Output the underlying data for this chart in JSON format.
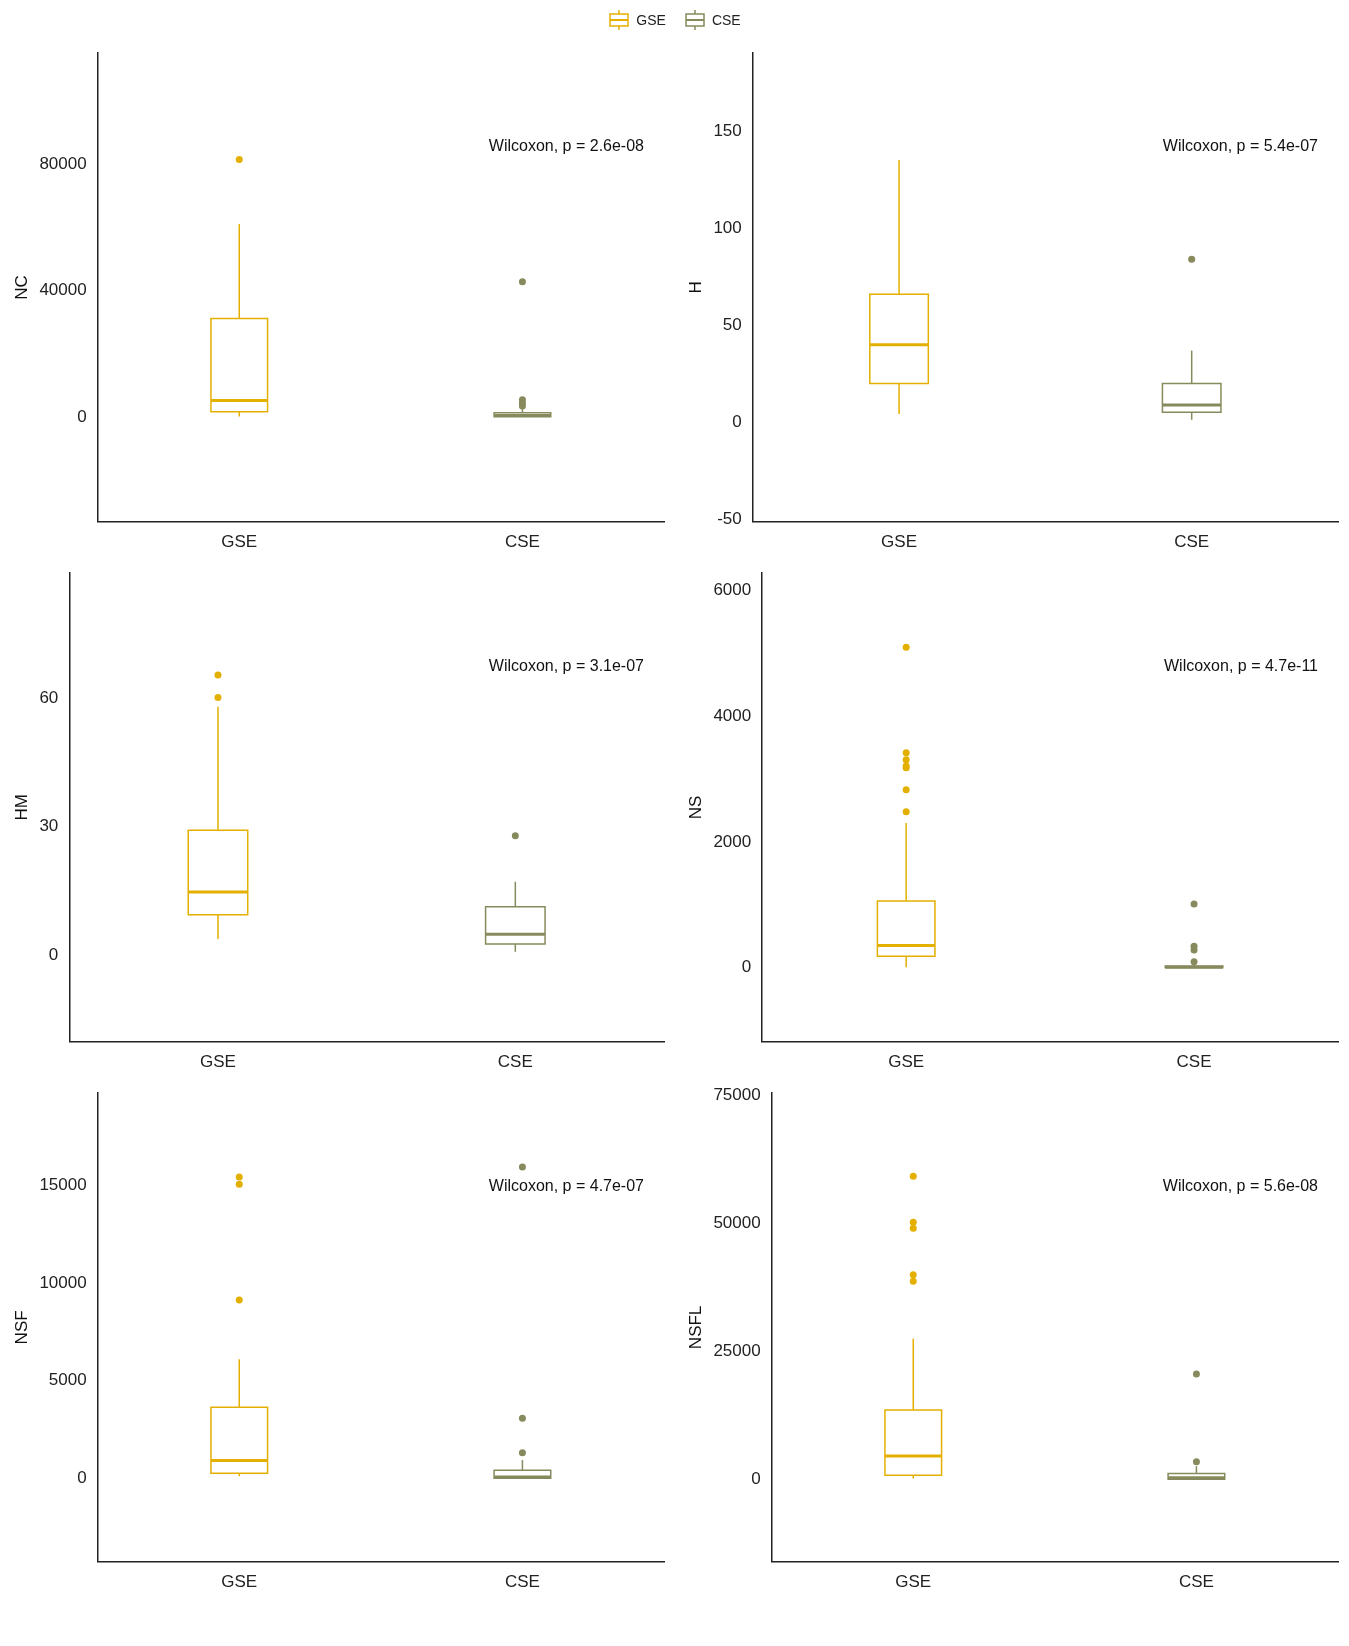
{
  "chart_data": [
    {
      "type": "box",
      "ylabel": "NC",
      "categories": [
        "GSE",
        "CSE"
      ],
      "ylim": [
        -33000,
        115000
      ],
      "yticks": [
        0,
        40000,
        80000
      ],
      "legend": "top",
      "annotations": [
        "Wilcoxon, p = 2.6e-08"
      ],
      "series": [
        {
          "name": "GSE",
          "color": "#e3b000",
          "boxes": [
            {
              "low": 200,
              "q1": 1700,
              "median": 5300,
              "q3": 31200,
              "high": 61000,
              "outliers": [
                81400
              ]
            },
            null
          ]
        },
        {
          "name": "CSE",
          "color": "#878a5c",
          "boxes": [
            null,
            {
              "low": 0,
              "q1": 100,
              "median": 500,
              "q3": 1400,
              "high": 2800,
              "outliers": [
                3500,
                4500,
                5500,
                42800
              ]
            }
          ]
        }
      ]
    },
    {
      "type": "box",
      "ylabel": "H",
      "categories": [
        "GSE",
        "CSE"
      ],
      "ylim": [
        -51,
        190
      ],
      "yticks": [
        -50,
        0,
        50,
        100,
        150
      ],
      "annotations": [
        "Wilcoxon, p = 5.4e-07"
      ],
      "series": [
        {
          "color": "#e3b000",
          "boxes": [
            {
              "low": 4.3,
              "q1": 20,
              "median": 40,
              "q3": 66,
              "high": 135
            },
            null
          ]
        },
        {
          "color": "#878a5c",
          "boxes": [
            null,
            {
              "low": 1.4,
              "q1": 5.3,
              "median": 9,
              "q3": 20,
              "high": 37,
              "outliers": [
                84
              ]
            }
          ]
        }
      ]
    },
    {
      "type": "box",
      "ylabel": "HM",
      "categories": [
        "GSE",
        "CSE"
      ],
      "ylim": [
        -20,
        89
      ],
      "yticks": [
        0,
        30,
        60
      ],
      "annotations": [
        "Wilcoxon, p = 3.1e-07"
      ],
      "series": [
        {
          "color": "#e3b000",
          "boxes": [
            {
              "low": 3.9,
              "q1": 9.5,
              "median": 14.8,
              "q3": 29.2,
              "high": 57.9,
              "outliers": [
                60.1,
                65.3
              ]
            },
            null
          ]
        },
        {
          "color": "#878a5c",
          "boxes": [
            null,
            {
              "low": 0.9,
              "q1": 2.7,
              "median": 5,
              "q3": 11.4,
              "high": 17.2,
              "outliers": [
                27.9
              ]
            }
          ]
        }
      ]
    },
    {
      "type": "box",
      "ylabel": "NS",
      "categories": [
        "GSE",
        "CSE"
      ],
      "ylim": [
        -1180,
        6280
      ],
      "yticks": [
        0,
        2000,
        4000,
        6000
      ],
      "annotations": [
        "Wilcoxon, p = 4.7e-11"
      ],
      "series": [
        {
          "color": "#e3b000",
          "boxes": [
            {
              "low": 5,
              "q1": 180,
              "median": 350,
              "q3": 1060,
              "high": 2300,
              "outliers": [
                2480,
                2830,
                3180,
                3210,
                3310,
                3420,
                5100
              ]
            },
            null
          ]
        },
        {
          "color": "#878a5c",
          "boxes": [
            null,
            {
              "low": 0,
              "q1": 0,
              "median": 5,
              "q3": 25,
              "high": 60,
              "outliers": [
                90,
                280,
                340,
                1010
              ]
            }
          ]
        }
      ]
    },
    {
      "type": "box",
      "ylabel": "NSF",
      "categories": [
        "GSE",
        "CSE"
      ],
      "ylim": [
        -4280,
        19750
      ],
      "yticks": [
        0,
        5000,
        10000,
        15000
      ],
      "annotations": [
        "Wilcoxon, p = 4.7e-07"
      ],
      "series": [
        {
          "color": "#e3b000",
          "boxes": [
            {
              "low": 100,
              "q1": 250,
              "median": 910,
              "q3": 3640,
              "high": 6100,
              "outliers": [
                9140,
                15080,
                15450
              ]
            },
            null
          ]
        },
        {
          "color": "#878a5c",
          "boxes": [
            null,
            {
              "low": 0,
              "q1": 0,
              "median": 60,
              "q3": 410,
              "high": 930,
              "outliers": [
                1300,
                3080,
                15970
              ]
            }
          ]
        }
      ]
    },
    {
      "type": "box",
      "ylabel": "NSFL",
      "categories": [
        "GSE",
        "CSE"
      ],
      "ylim": [
        -16100,
        75500
      ],
      "yticks": [
        0,
        25000,
        50000,
        75000
      ],
      "annotations": [
        "Wilcoxon, p = 5.6e-08"
      ],
      "series": [
        {
          "color": "#e3b000",
          "boxes": [
            {
              "low": 160,
              "q1": 800,
              "median": 4570,
              "q3": 13550,
              "high": 27500,
              "outliers": [
                38730,
                40020,
                49080,
                50280,
                59260
              ]
            },
            null
          ]
        },
        {
          "color": "#878a5c",
          "boxes": [
            null,
            {
              "low": 0,
              "q1": 0,
              "median": 320,
              "q3": 1120,
              "high": 2570,
              "outliers": [
                3450,
                20610
              ]
            }
          ]
        }
      ]
    }
  ]
}
